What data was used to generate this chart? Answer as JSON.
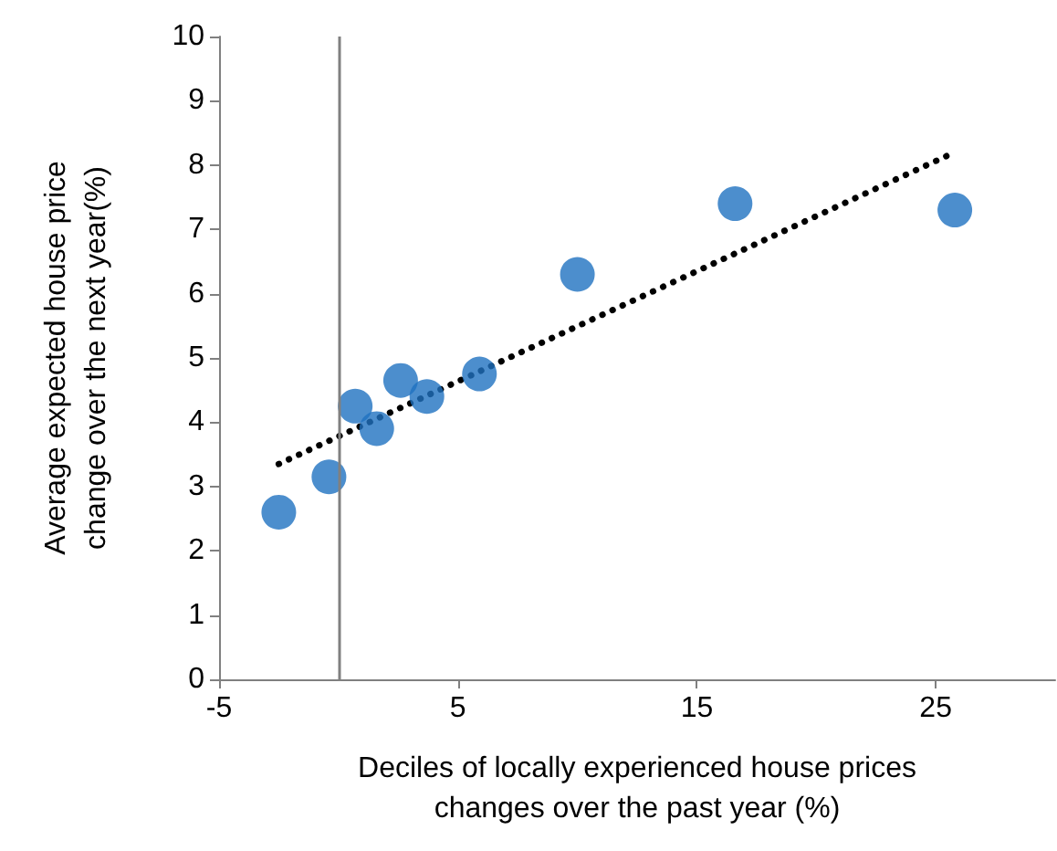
{
  "chart_data": {
    "type": "scatter",
    "xlabel": "Deciles of locally experienced house prices changes over the past year (%)",
    "ylabel": "Average expected house price change over the next year(%)",
    "series": [
      {
        "color": "#1f72c0",
        "marker": "circle",
        "x": [
          -2.5,
          -0.4,
          0.7,
          1.6,
          2.6,
          3.7,
          5.9,
          10.0,
          16.6,
          25.8
        ],
        "values": [
          2.6,
          3.15,
          4.25,
          3.9,
          4.65,
          4.4,
          4.75,
          6.3,
          7.4,
          7.3
        ]
      },
      {
        "type": "line",
        "color": "#000000",
        "line_style": "dotted",
        "marker": "none",
        "x": [
          -2.5,
          25.8
        ],
        "values": [
          3.35,
          8.2
        ]
      }
    ],
    "xlim": [
      -5,
      30
    ],
    "xticks": [
      -5,
      5,
      15,
      25
    ],
    "ylim": [
      0,
      10
    ],
    "yticks": [
      0,
      1,
      2,
      3,
      4,
      5,
      6,
      7,
      8,
      9,
      10
    ],
    "ref_lines": [
      {
        "axis": "x",
        "value": 0,
        "color": "#808080"
      }
    ],
    "grid": false,
    "legend": false
  }
}
